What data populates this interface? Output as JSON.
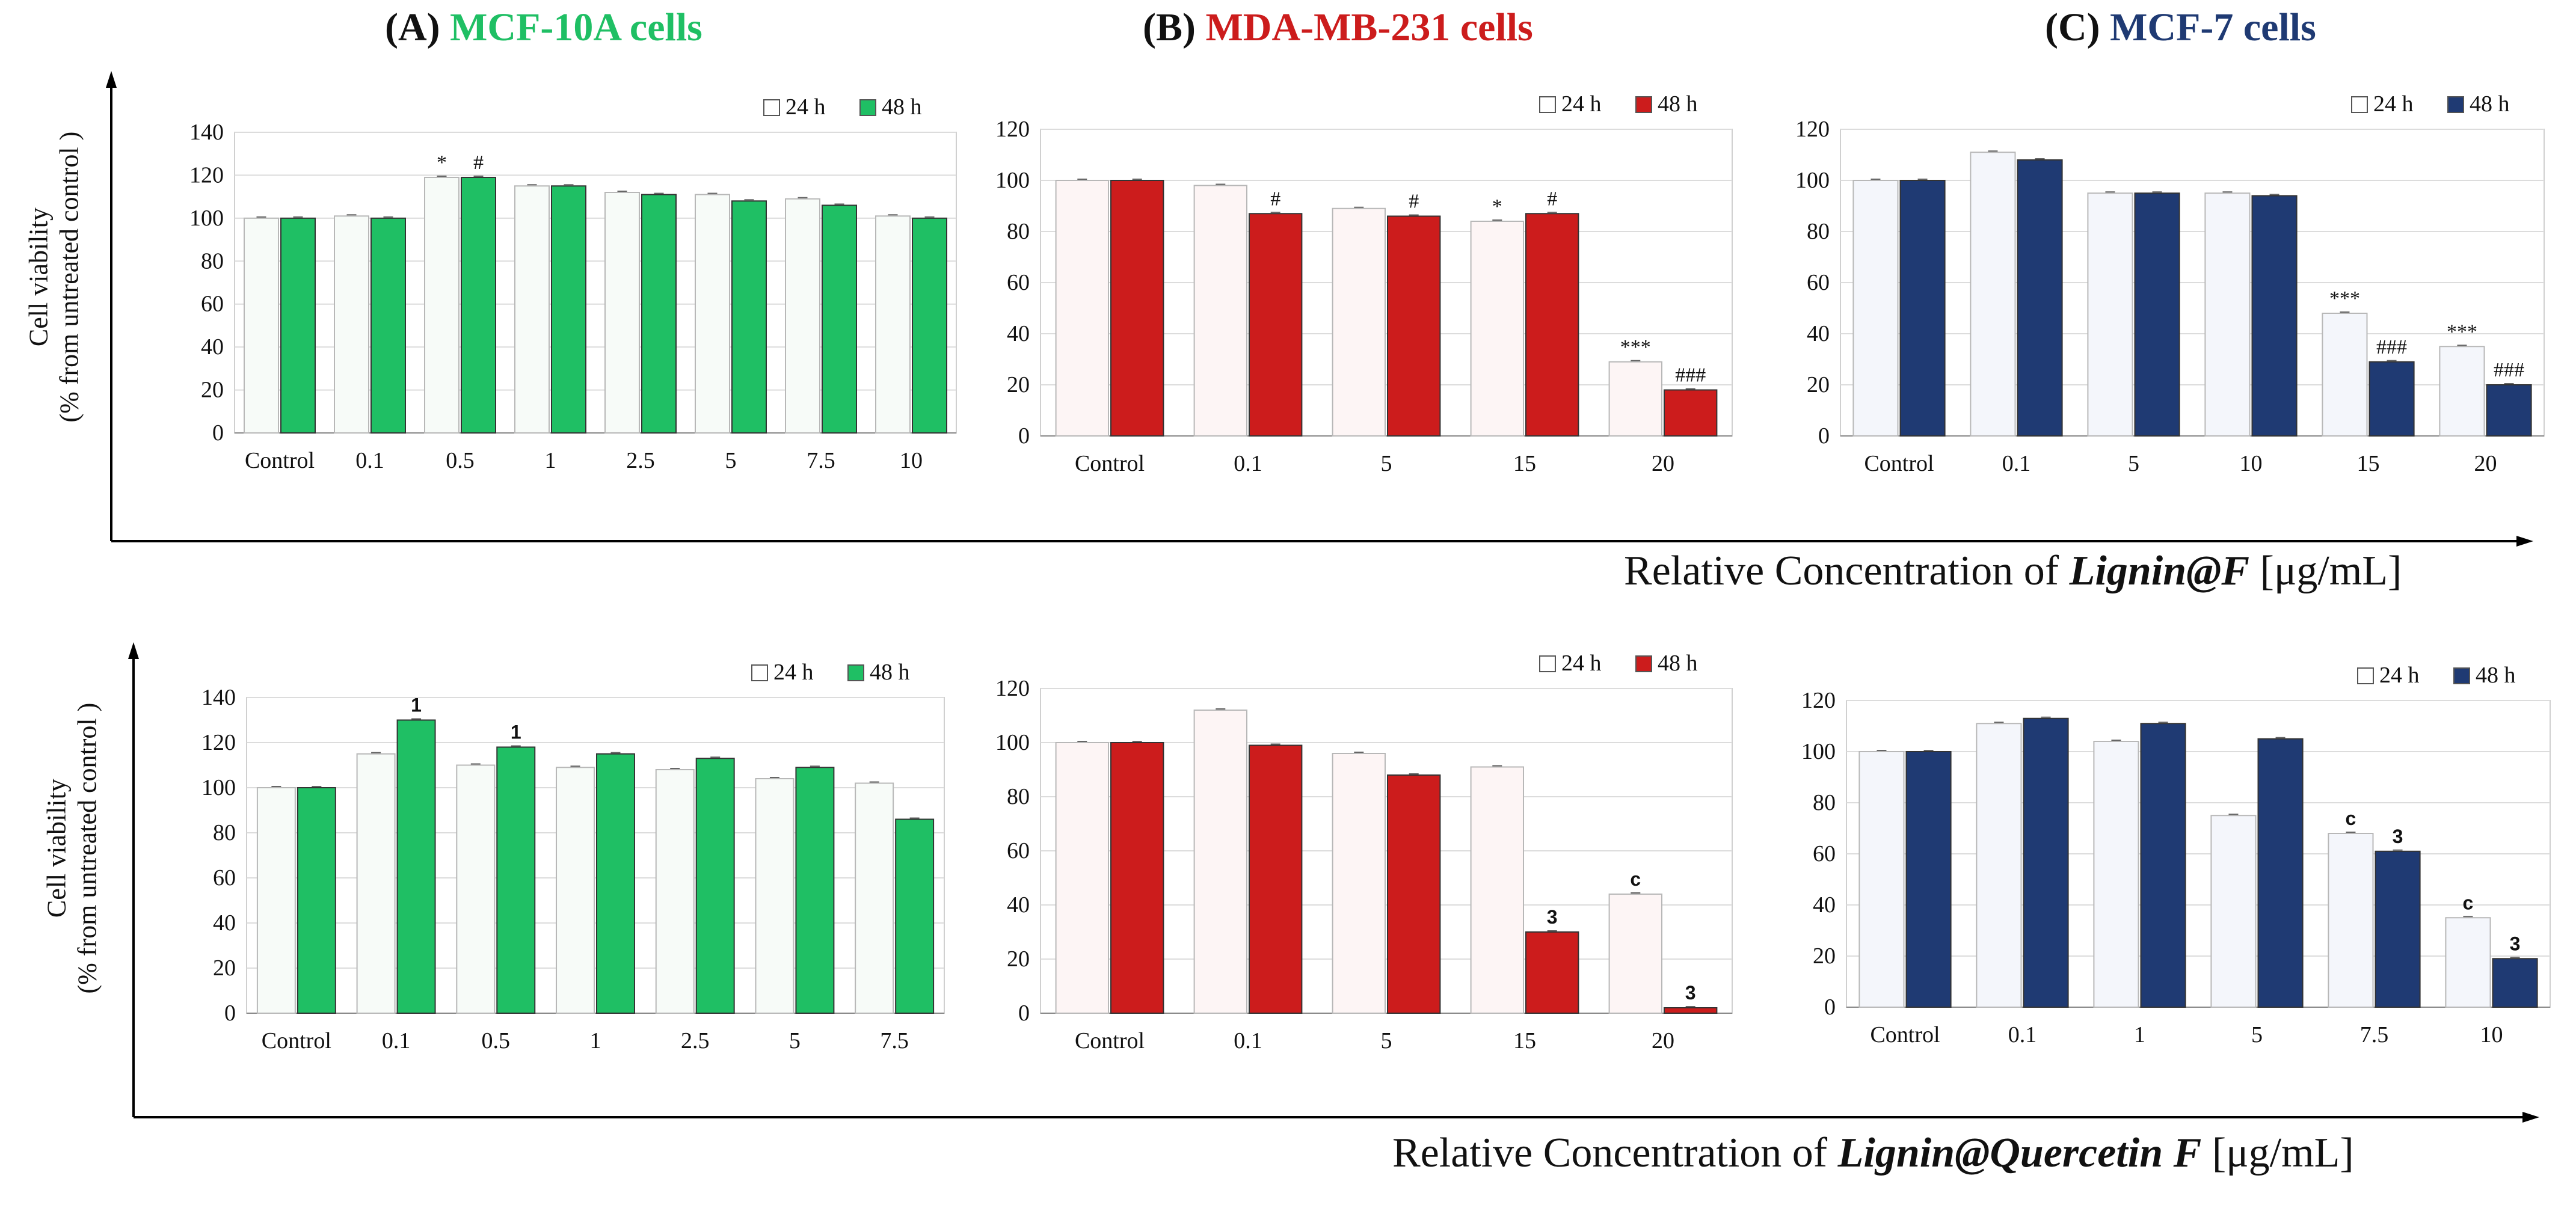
{
  "titles": {
    "a": {
      "letter": "(A)",
      "name": "MCF-10A cells",
      "color": "#1fbf64"
    },
    "b": {
      "letter": "(B)",
      "name": "MDA-MB-231 cells",
      "color": "#cc1c1c"
    },
    "c": {
      "letter": "(C)",
      "name": "MCF-7 cells",
      "color": "#1f3a73"
    }
  },
  "ylabel": {
    "line1": "Cell viability",
    "line2": "(% from untreated control )"
  },
  "xtitles": {
    "top": {
      "pre": "Relative Concentration of ",
      "em": "Lignin@F",
      "post": " [μg/mL]"
    },
    "bottom": {
      "pre": "Relative Concentration of ",
      "em": "Lignin@Quercetin F",
      "post": " [μg/mL]"
    }
  },
  "chart_data": [
    {
      "id": "a-top",
      "type": "bar",
      "color": "#1fbf64",
      "ylim": [
        0,
        140
      ],
      "yticks": [
        0,
        20,
        40,
        60,
        80,
        100,
        120,
        140
      ],
      "categories": [
        "Control",
        "0.1",
        "0.5",
        "1",
        "2.5",
        "5",
        "7.5",
        "10"
      ],
      "legend": [
        "24 h",
        "48 h"
      ],
      "series": [
        {
          "name": "24 h",
          "values": [
            100,
            101,
            119,
            115,
            112,
            111,
            109,
            101
          ]
        },
        {
          "name": "48 h",
          "values": [
            100,
            100,
            119,
            115,
            111,
            108,
            106,
            100
          ]
        }
      ],
      "marks": [
        {
          "cat": 2,
          "series": 0,
          "text": "*"
        },
        {
          "cat": 2,
          "series": 1,
          "text": "#"
        }
      ]
    },
    {
      "id": "b-top",
      "type": "bar",
      "color": "#cc1c1c",
      "ylim": [
        0,
        120
      ],
      "yticks": [
        0,
        20,
        40,
        60,
        80,
        100,
        120
      ],
      "categories": [
        "Control",
        "0.1",
        "5",
        "15",
        "20"
      ],
      "legend": [
        "24 h",
        "48 h"
      ],
      "series": [
        {
          "name": "24 h",
          "values": [
            100,
            98,
            89,
            84,
            29
          ]
        },
        {
          "name": "48 h",
          "values": [
            100,
            87,
            86,
            87,
            18
          ]
        }
      ],
      "marks": [
        {
          "cat": 1,
          "series": 1,
          "text": "#"
        },
        {
          "cat": 2,
          "series": 1,
          "text": "#"
        },
        {
          "cat": 3,
          "series": 0,
          "text": "*"
        },
        {
          "cat": 3,
          "series": 1,
          "text": "#"
        },
        {
          "cat": 4,
          "series": 0,
          "text": "***"
        },
        {
          "cat": 4,
          "series": 1,
          "text": "###"
        }
      ]
    },
    {
      "id": "c-top",
      "type": "bar",
      "color": "#1f3a73",
      "ylim": [
        0,
        120
      ],
      "yticks": [
        0,
        20,
        40,
        60,
        80,
        100,
        120
      ],
      "categories": [
        "Control",
        "0.1",
        "5",
        "10",
        "15",
        "20"
      ],
      "legend": [
        "24 h",
        "48 h"
      ],
      "series": [
        {
          "name": "24 h",
          "values": [
            100,
            111,
            95,
            95,
            48,
            35
          ]
        },
        {
          "name": "48 h",
          "values": [
            100,
            108,
            95,
            94,
            29,
            20
          ]
        }
      ],
      "marks": [
        {
          "cat": 4,
          "series": 0,
          "text": "***"
        },
        {
          "cat": 4,
          "series": 1,
          "text": "###"
        },
        {
          "cat": 5,
          "series": 0,
          "text": "***"
        },
        {
          "cat": 5,
          "series": 1,
          "text": "###"
        }
      ]
    },
    {
      "id": "a-bot",
      "type": "bar",
      "color": "#1fbf64",
      "ylim": [
        0,
        140
      ],
      "yticks": [
        0,
        20,
        40,
        60,
        80,
        100,
        120,
        140
      ],
      "categories": [
        "Control",
        "0.1",
        "0.5",
        "1",
        "2.5",
        "5",
        "7.5"
      ],
      "legend": [
        "24 h",
        "48 h"
      ],
      "series": [
        {
          "name": "24 h",
          "values": [
            100,
            115,
            110,
            109,
            108,
            104,
            102
          ]
        },
        {
          "name": "48 h",
          "values": [
            100,
            130,
            118,
            115,
            113,
            109,
            86
          ]
        }
      ],
      "marks": [
        {
          "cat": 1,
          "series": 1,
          "text": "1"
        },
        {
          "cat": 2,
          "series": 1,
          "text": "1"
        }
      ]
    },
    {
      "id": "b-bot",
      "type": "bar",
      "color": "#cc1c1c",
      "ylim": [
        0,
        120
      ],
      "yticks": [
        0,
        20,
        40,
        60,
        80,
        100,
        120
      ],
      "categories": [
        "Control",
        "0.1",
        "5",
        "15",
        "20"
      ],
      "legend": [
        "24 h",
        "48 h"
      ],
      "series": [
        {
          "name": "24 h",
          "values": [
            100,
            112,
            96,
            91,
            44
          ]
        },
        {
          "name": "48 h",
          "values": [
            100,
            99,
            88,
            30,
            2
          ]
        }
      ],
      "marks": [
        {
          "cat": 3,
          "series": 1,
          "text": "3"
        },
        {
          "cat": 4,
          "series": 0,
          "text": "c"
        },
        {
          "cat": 4,
          "series": 1,
          "text": "3"
        }
      ]
    },
    {
      "id": "c-bot",
      "type": "bar",
      "color": "#1f3a73",
      "ylim": [
        0,
        120
      ],
      "yticks": [
        0,
        20,
        40,
        60,
        80,
        100,
        120
      ],
      "categories": [
        "Control",
        "0.1",
        "1",
        "5",
        "7.5",
        "10"
      ],
      "legend": [
        "24 h",
        "48 h"
      ],
      "series": [
        {
          "name": "24 h",
          "values": [
            100,
            111,
            104,
            75,
            68,
            35
          ]
        },
        {
          "name": "48 h",
          "values": [
            100,
            113,
            111,
            105,
            61,
            19
          ]
        }
      ],
      "marks": [
        {
          "cat": 4,
          "series": 0,
          "text": "c"
        },
        {
          "cat": 4,
          "series": 1,
          "text": "3"
        },
        {
          "cat": 5,
          "series": 0,
          "text": "c"
        },
        {
          "cat": 5,
          "series": 1,
          "text": "3"
        }
      ]
    }
  ]
}
